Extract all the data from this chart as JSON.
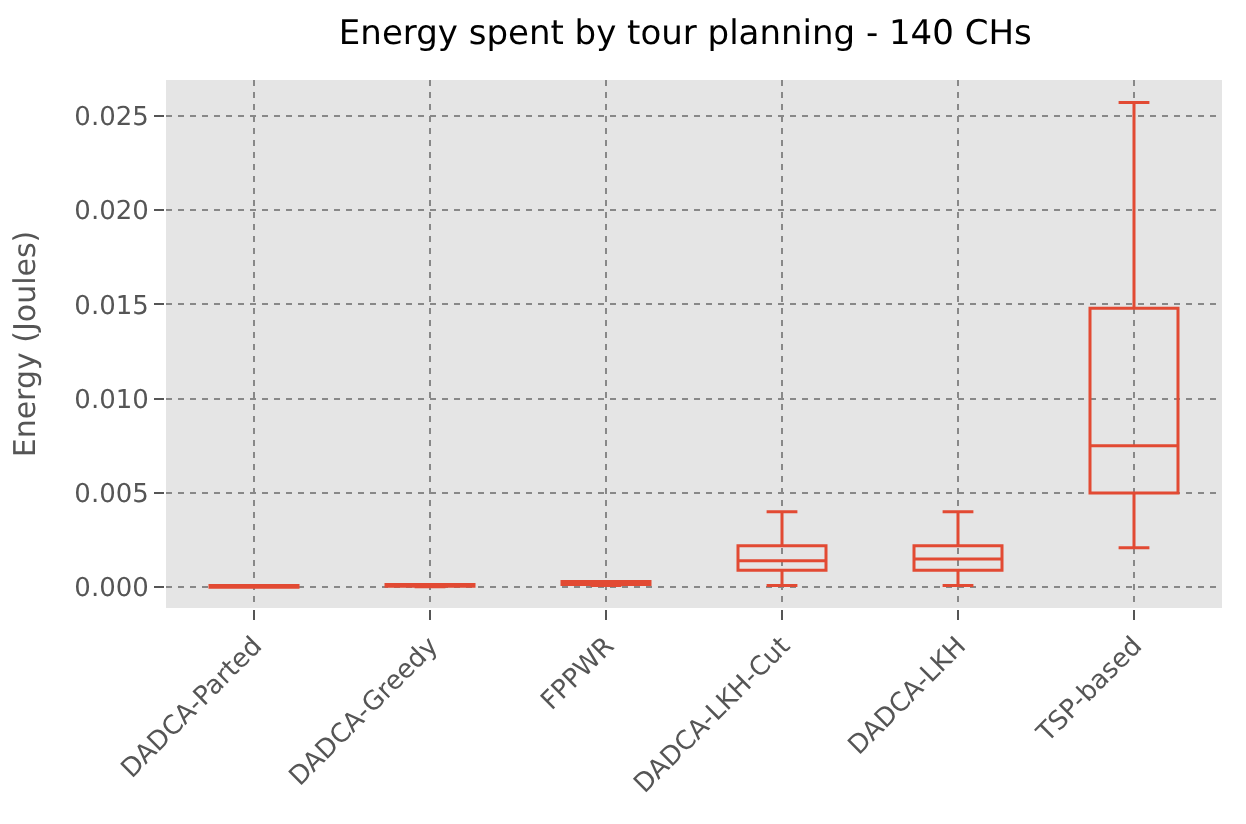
{
  "chart_data": {
    "type": "box",
    "title": "Energy spent by tour planning - 140 CHs",
    "ylabel": "Energy (Joules)",
    "categories": [
      "DADCA-Parted",
      "DADCA-Greedy",
      "FPPWR",
      "DADCA-LKH-Cut",
      "DADCA-LKH",
      "TSP-based"
    ],
    "boxes": [
      {
        "low": 0.0,
        "q1": 0.0,
        "median": 5e-05,
        "q3": 0.0001,
        "high": 0.0001
      },
      {
        "low": 3e-05,
        "q1": 5e-05,
        "median": 0.0001,
        "q3": 0.00015,
        "high": 0.00015
      },
      {
        "low": 0.0001,
        "q1": 0.00015,
        "median": 0.0002,
        "q3": 0.0003,
        "high": 0.0003
      },
      {
        "low": 0.0001,
        "q1": 0.0009,
        "median": 0.0014,
        "q3": 0.0022,
        "high": 0.004
      },
      {
        "low": 0.0001,
        "q1": 0.0009,
        "median": 0.0015,
        "q3": 0.0022,
        "high": 0.004
      },
      {
        "low": 0.0021,
        "q1": 0.005,
        "median": 0.0075,
        "q3": 0.0148,
        "high": 0.0257
      }
    ],
    "color": "#e24a33",
    "ylim": [
      -0.0011,
      0.0269
    ],
    "yticks": [
      {
        "value": 0,
        "label": "0.000"
      },
      {
        "value": 0.005,
        "label": "0.005"
      },
      {
        "value": 0.01,
        "label": "0.010"
      },
      {
        "value": 0.015,
        "label": "0.015"
      },
      {
        "value": 0.02,
        "label": "0.020"
      },
      {
        "value": 0.025,
        "label": "0.025"
      }
    ],
    "grid": true,
    "legend": false
  }
}
